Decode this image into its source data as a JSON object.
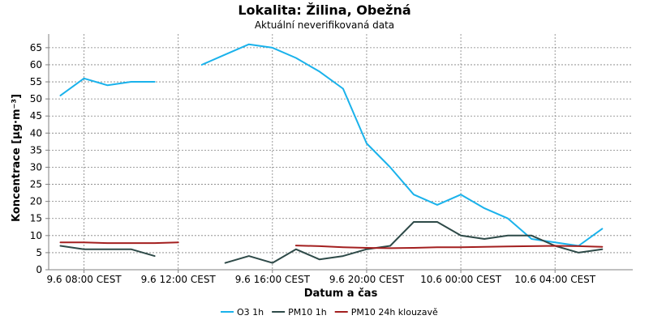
{
  "chart_data": {
    "type": "line",
    "title": "Lokalita: Žilina, Obežná",
    "subtitle": "Aktuální neverifikovaná data",
    "xlabel": "Datum a čas",
    "ylabel": "Koncentrace [µg·m⁻³]",
    "ylim": [
      0,
      69
    ],
    "yticks": [
      0,
      5,
      10,
      15,
      20,
      25,
      30,
      35,
      40,
      45,
      50,
      55,
      60,
      65
    ],
    "x_ticks": [
      {
        "x": 1,
        "label": "9.6 08:00 CEST"
      },
      {
        "x": 5,
        "label": "9.6 12:00 CEST"
      },
      {
        "x": 9,
        "label": "9.6 16:00 CEST"
      },
      {
        "x": 13,
        "label": "9.6 20:00 CEST"
      },
      {
        "x": 17,
        "label": "10.6 00:00 CEST"
      },
      {
        "x": 21,
        "label": "10.6 04:00 CEST"
      }
    ],
    "xlim": [
      -0.5,
      24.3
    ],
    "x": [
      0,
      1,
      2,
      3,
      4,
      5,
      6,
      7,
      8,
      9,
      10,
      11,
      12,
      13,
      14,
      15,
      16,
      17,
      18,
      19,
      20,
      21,
      22,
      23,
      24
    ],
    "grid": true,
    "legend_position": "bottom",
    "series": [
      {
        "name": "O3 1h",
        "color": "#1ab2eb",
        "values": [
          51,
          56,
          54,
          55,
          55,
          null,
          60,
          63,
          66,
          65,
          62,
          58,
          53,
          37,
          30,
          22,
          19,
          22,
          18,
          15,
          9,
          8,
          7,
          12,
          null
        ]
      },
      {
        "name": "PM10 1h",
        "color": "#2e4a48",
        "values": [
          7,
          6,
          6,
          6,
          4,
          null,
          null,
          2,
          4,
          2,
          6,
          3,
          4,
          6,
          7,
          14,
          14,
          10,
          9,
          10,
          10,
          7,
          5,
          6,
          null
        ]
      },
      {
        "name": "PM10 24h klouzavě",
        "color": "#a31f1f",
        "values": [
          8,
          8,
          7.8,
          7.8,
          7.8,
          8,
          null,
          null,
          null,
          null,
          7.1,
          6.9,
          6.6,
          6.4,
          6.3,
          6.4,
          6.6,
          6.6,
          6.7,
          6.8,
          6.9,
          7,
          6.9,
          6.7,
          null
        ]
      }
    ]
  }
}
